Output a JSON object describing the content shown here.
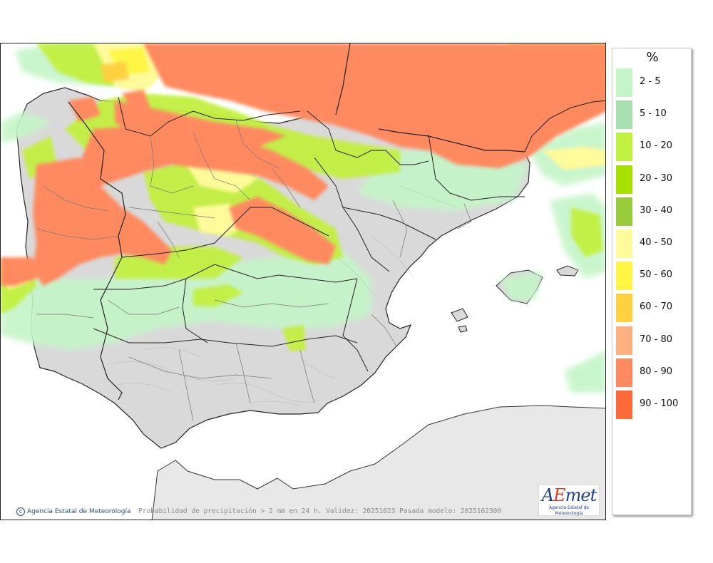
{
  "map": {
    "legend_title": "%",
    "legend": [
      {
        "label": "2 - 5",
        "color": "#c4f5c8"
      },
      {
        "label": "5 - 10",
        "color": "#a8dfb0"
      },
      {
        "label": "10 - 20",
        "color": "#c2f040"
      },
      {
        "label": "20 - 30",
        "color": "#a8e000"
      },
      {
        "label": "30 - 40",
        "color": "#98cc3a"
      },
      {
        "label": "40 - 50",
        "color": "#fffa9a"
      },
      {
        "label": "50 - 60",
        "color": "#fff544"
      },
      {
        "label": "60 - 70",
        "color": "#ffd040"
      },
      {
        "label": "70 - 80",
        "color": "#ffb080"
      },
      {
        "label": "80 - 90",
        "color": "#ff8a60"
      },
      {
        "label": "90 - 100",
        "color": "#ff6a38"
      }
    ],
    "credit": "Agencia Estatal de Meteorología",
    "caption": "Probabilidad de precipitación > 2 mm en 24 h. Validez: 20251023 Pasada modelo: 2025102300",
    "logo": {
      "wordmark_a": "A",
      "wordmark_e": "E",
      "wordmark_rest": "met",
      "subtitle": "Agencia Estatal de Meteorología"
    },
    "colors": {
      "sea": "#ffffff",
      "land": "#d9d9d9",
      "africa": "#e8e8e8",
      "border": "#222222",
      "region_border": "#777777"
    }
  }
}
